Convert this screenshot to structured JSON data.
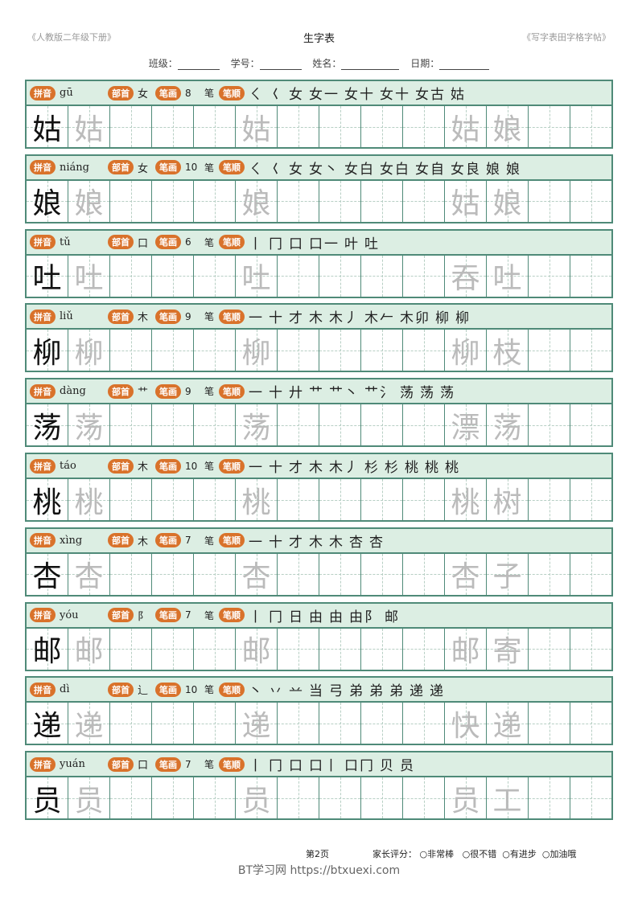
{
  "header": {
    "left": "《人教版二年级下册》",
    "title": "生字表",
    "right": "《写字表田字格字帖》"
  },
  "info": {
    "class": "班级：",
    "number": "学号：",
    "name": "姓名：",
    "date": "日期："
  },
  "labels": {
    "pinyin": "拼音",
    "radical": "部首",
    "strokes": "笔画",
    "order": "笔顺",
    "unit": "笔"
  },
  "rows": [
    {
      "char": "姑",
      "pinyin": "gū",
      "radical": "女",
      "count": "8",
      "steps": [
        "ㄑ",
        "𡿨",
        "女",
        "女一",
        "女十",
        "女十",
        "女古",
        "姑"
      ],
      "word": [
        "姑",
        "娘"
      ]
    },
    {
      "char": "娘",
      "pinyin": "niáng",
      "radical": "女",
      "count": "10",
      "steps": [
        "ㄑ",
        "𡿨",
        "女",
        "女丶",
        "女白",
        "女白",
        "女自",
        "女良",
        "娘",
        "娘"
      ],
      "word": [
        "姑",
        "娘"
      ]
    },
    {
      "char": "吐",
      "pinyin": "tǔ",
      "radical": "口",
      "count": "6",
      "steps": [
        "丨",
        "冂",
        "口",
        "口一",
        "叶",
        "吐"
      ],
      "word": [
        "吞",
        "吐"
      ]
    },
    {
      "char": "柳",
      "pinyin": "liǔ",
      "radical": "木",
      "count": "9",
      "steps": [
        "一",
        "十",
        "才",
        "木",
        "木丿",
        "木𠂉",
        "木卯",
        "柳",
        "柳"
      ],
      "word": [
        "柳",
        "枝"
      ]
    },
    {
      "char": "荡",
      "pinyin": "dàng",
      "radical": "艹",
      "count": "9",
      "steps": [
        "一",
        "十",
        "廾",
        "艹",
        "艹丶",
        "艹氵",
        "荡",
        "荡",
        "荡"
      ],
      "word": [
        "漂",
        "荡"
      ]
    },
    {
      "char": "桃",
      "pinyin": "táo",
      "radical": "木",
      "count": "10",
      "steps": [
        "一",
        "十",
        "才",
        "木",
        "木丿",
        "杉",
        "杉",
        "桃",
        "桃",
        "桃"
      ],
      "word": [
        "桃",
        "树"
      ]
    },
    {
      "char": "杏",
      "pinyin": "xìng",
      "radical": "木",
      "count": "7",
      "steps": [
        "一",
        "十",
        "才",
        "木",
        "木",
        "杏",
        "杏"
      ],
      "word": [
        "杏",
        "子"
      ]
    },
    {
      "char": "邮",
      "pinyin": "yóu",
      "radical": "阝",
      "count": "7",
      "steps": [
        "丨",
        "冂",
        "日",
        "由",
        "由",
        "由阝",
        "邮"
      ],
      "word": [
        "邮",
        "寄"
      ]
    },
    {
      "char": "递",
      "pinyin": "dì",
      "radical": "辶",
      "count": "10",
      "steps": [
        "丶",
        "丷",
        "䒑",
        "当",
        "弓",
        "弟",
        "弟",
        "弟",
        "递",
        "递"
      ],
      "word": [
        "快",
        "递"
      ]
    },
    {
      "char": "员",
      "pinyin": "yuán",
      "radical": "口",
      "count": "7",
      "steps": [
        "丨",
        "冂",
        "口",
        "口丨",
        "口冂",
        "贝",
        "员"
      ],
      "word": [
        "员",
        "工"
      ]
    }
  ],
  "footer": {
    "page": "第2页",
    "rating_label": "家长评分：",
    "options": [
      "非常棒",
      "很不错",
      "有进步",
      "加油哦"
    ]
  },
  "watermark": "BT学习网 https://btxuexi.com",
  "colors": {
    "border": "#4f8a78",
    "bar": "#dceee3",
    "tag": "#d9722b"
  }
}
